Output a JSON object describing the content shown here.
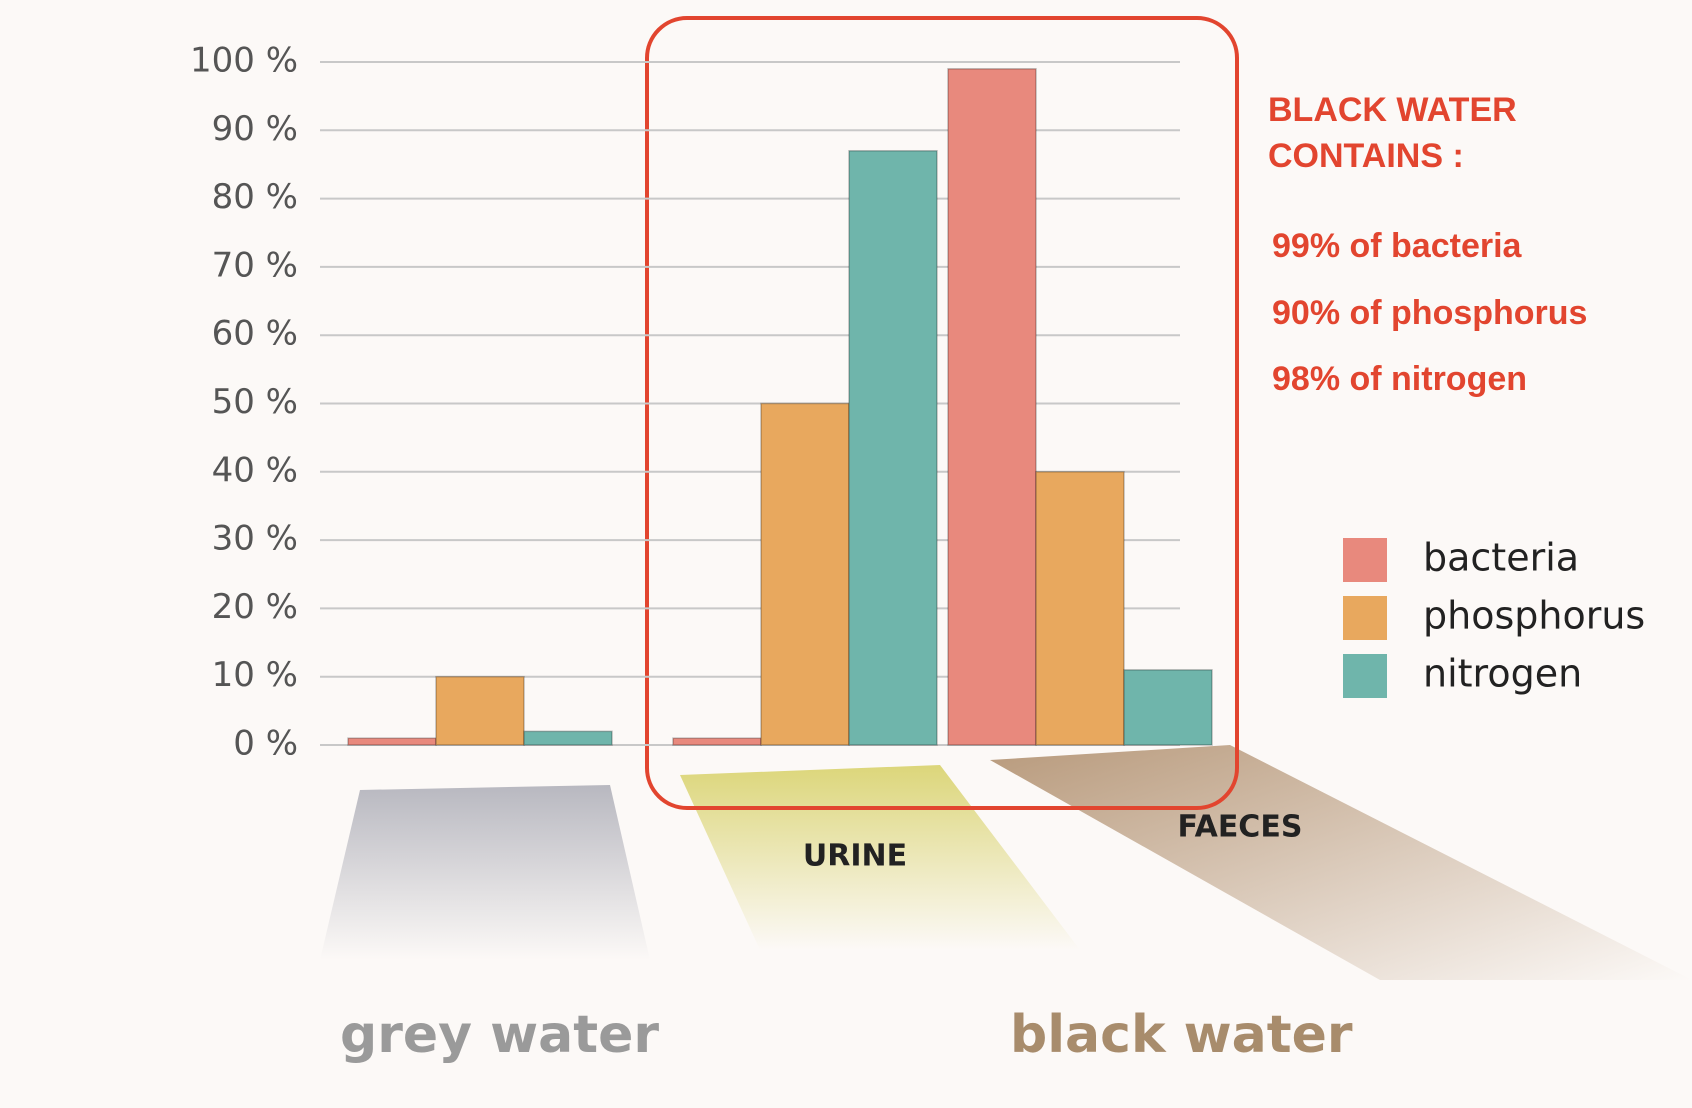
{
  "chart_data": {
    "type": "bar",
    "categories": [
      null,
      "URINE",
      "FAECES"
    ],
    "series": [
      {
        "name": "bacteria",
        "color": "#e8897d",
        "values": [
          1,
          1,
          99
        ]
      },
      {
        "name": "phosphorus",
        "color": "#e8a85e",
        "values": [
          10,
          50,
          40
        ]
      },
      {
        "name": "nitrogen",
        "color": "#6fb5ab",
        "values": [
          2,
          87,
          11
        ]
      }
    ],
    "ylim": [
      0,
      100
    ],
    "yticks": [
      {
        "value": 0,
        "label": "0 %"
      },
      {
        "value": 10,
        "label": "10 %"
      },
      {
        "value": 20,
        "label": "20 %"
      },
      {
        "value": 30,
        "label": "30 %"
      },
      {
        "value": 40,
        "label": "40 %"
      },
      {
        "value": 50,
        "label": "50 %"
      },
      {
        "value": 60,
        "label": "60 %"
      },
      {
        "value": 70,
        "label": "70 %"
      },
      {
        "value": 80,
        "label": "80 %"
      },
      {
        "value": 90,
        "label": "90 %"
      },
      {
        "value": 100,
        "label": "100 %"
      }
    ],
    "grid": true,
    "legend": "right",
    "heading": [
      "BLACK WATER",
      "CONTAINS :"
    ],
    "notes": [
      "99% of bacteria",
      "90% of phosphorus",
      "98% of nitrogen"
    ],
    "area_labels": [
      "grey water",
      "black water"
    ]
  }
}
